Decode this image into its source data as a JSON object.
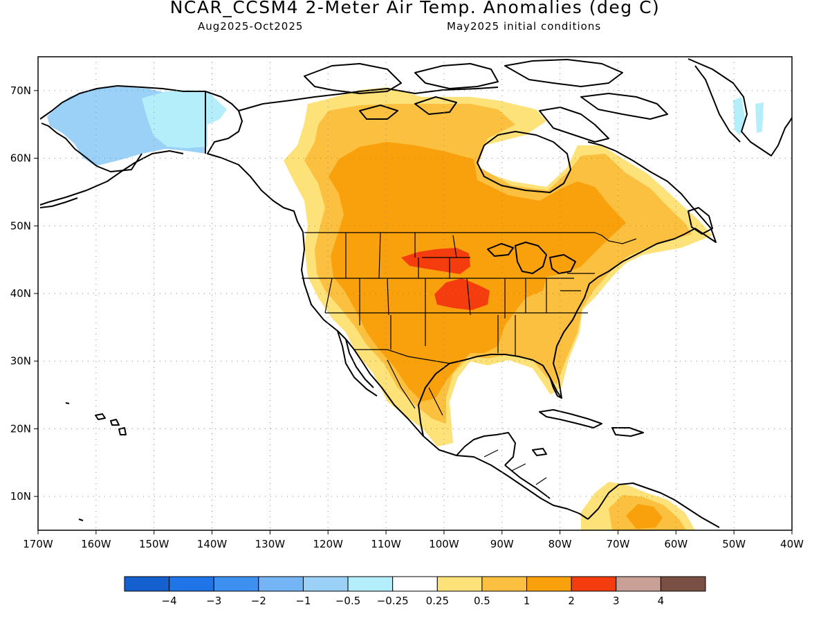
{
  "title": "NCAR_CCSM4 2-Meter Air Temp. Anomalies (deg C)",
  "subtitle_left": "Aug2025-Oct2025",
  "subtitle_right": "May2025 initial conditions",
  "map": {
    "region": "North America",
    "lon_range": [
      -170,
      -40
    ],
    "lat_range": [
      5,
      75
    ],
    "lon_ticks": [
      "170W",
      "160W",
      "150W",
      "140W",
      "130W",
      "120W",
      "110W",
      "100W",
      "90W",
      "80W",
      "70W",
      "60W",
      "50W",
      "40W"
    ],
    "lat_ticks": [
      "10N",
      "20N",
      "30N",
      "40N",
      "50N",
      "60N",
      "70N"
    ],
    "gridlines": true
  },
  "colorbar": {
    "colors": [
      "#1560cf",
      "#1f74e8",
      "#3d8ff0",
      "#75b5f5",
      "#9bd0f7",
      "#b4eefa",
      "#ffffff",
      "#fde27a",
      "#fbc040",
      "#f8a10d",
      "#f53c0f",
      "#c9a095",
      "#7a4f44"
    ],
    "labels": [
      "-4",
      "-3",
      "-2",
      "-1",
      "-0.5",
      "-0.25",
      "0.25",
      "0.5",
      "1",
      "2",
      "3",
      "4"
    ]
  }
}
